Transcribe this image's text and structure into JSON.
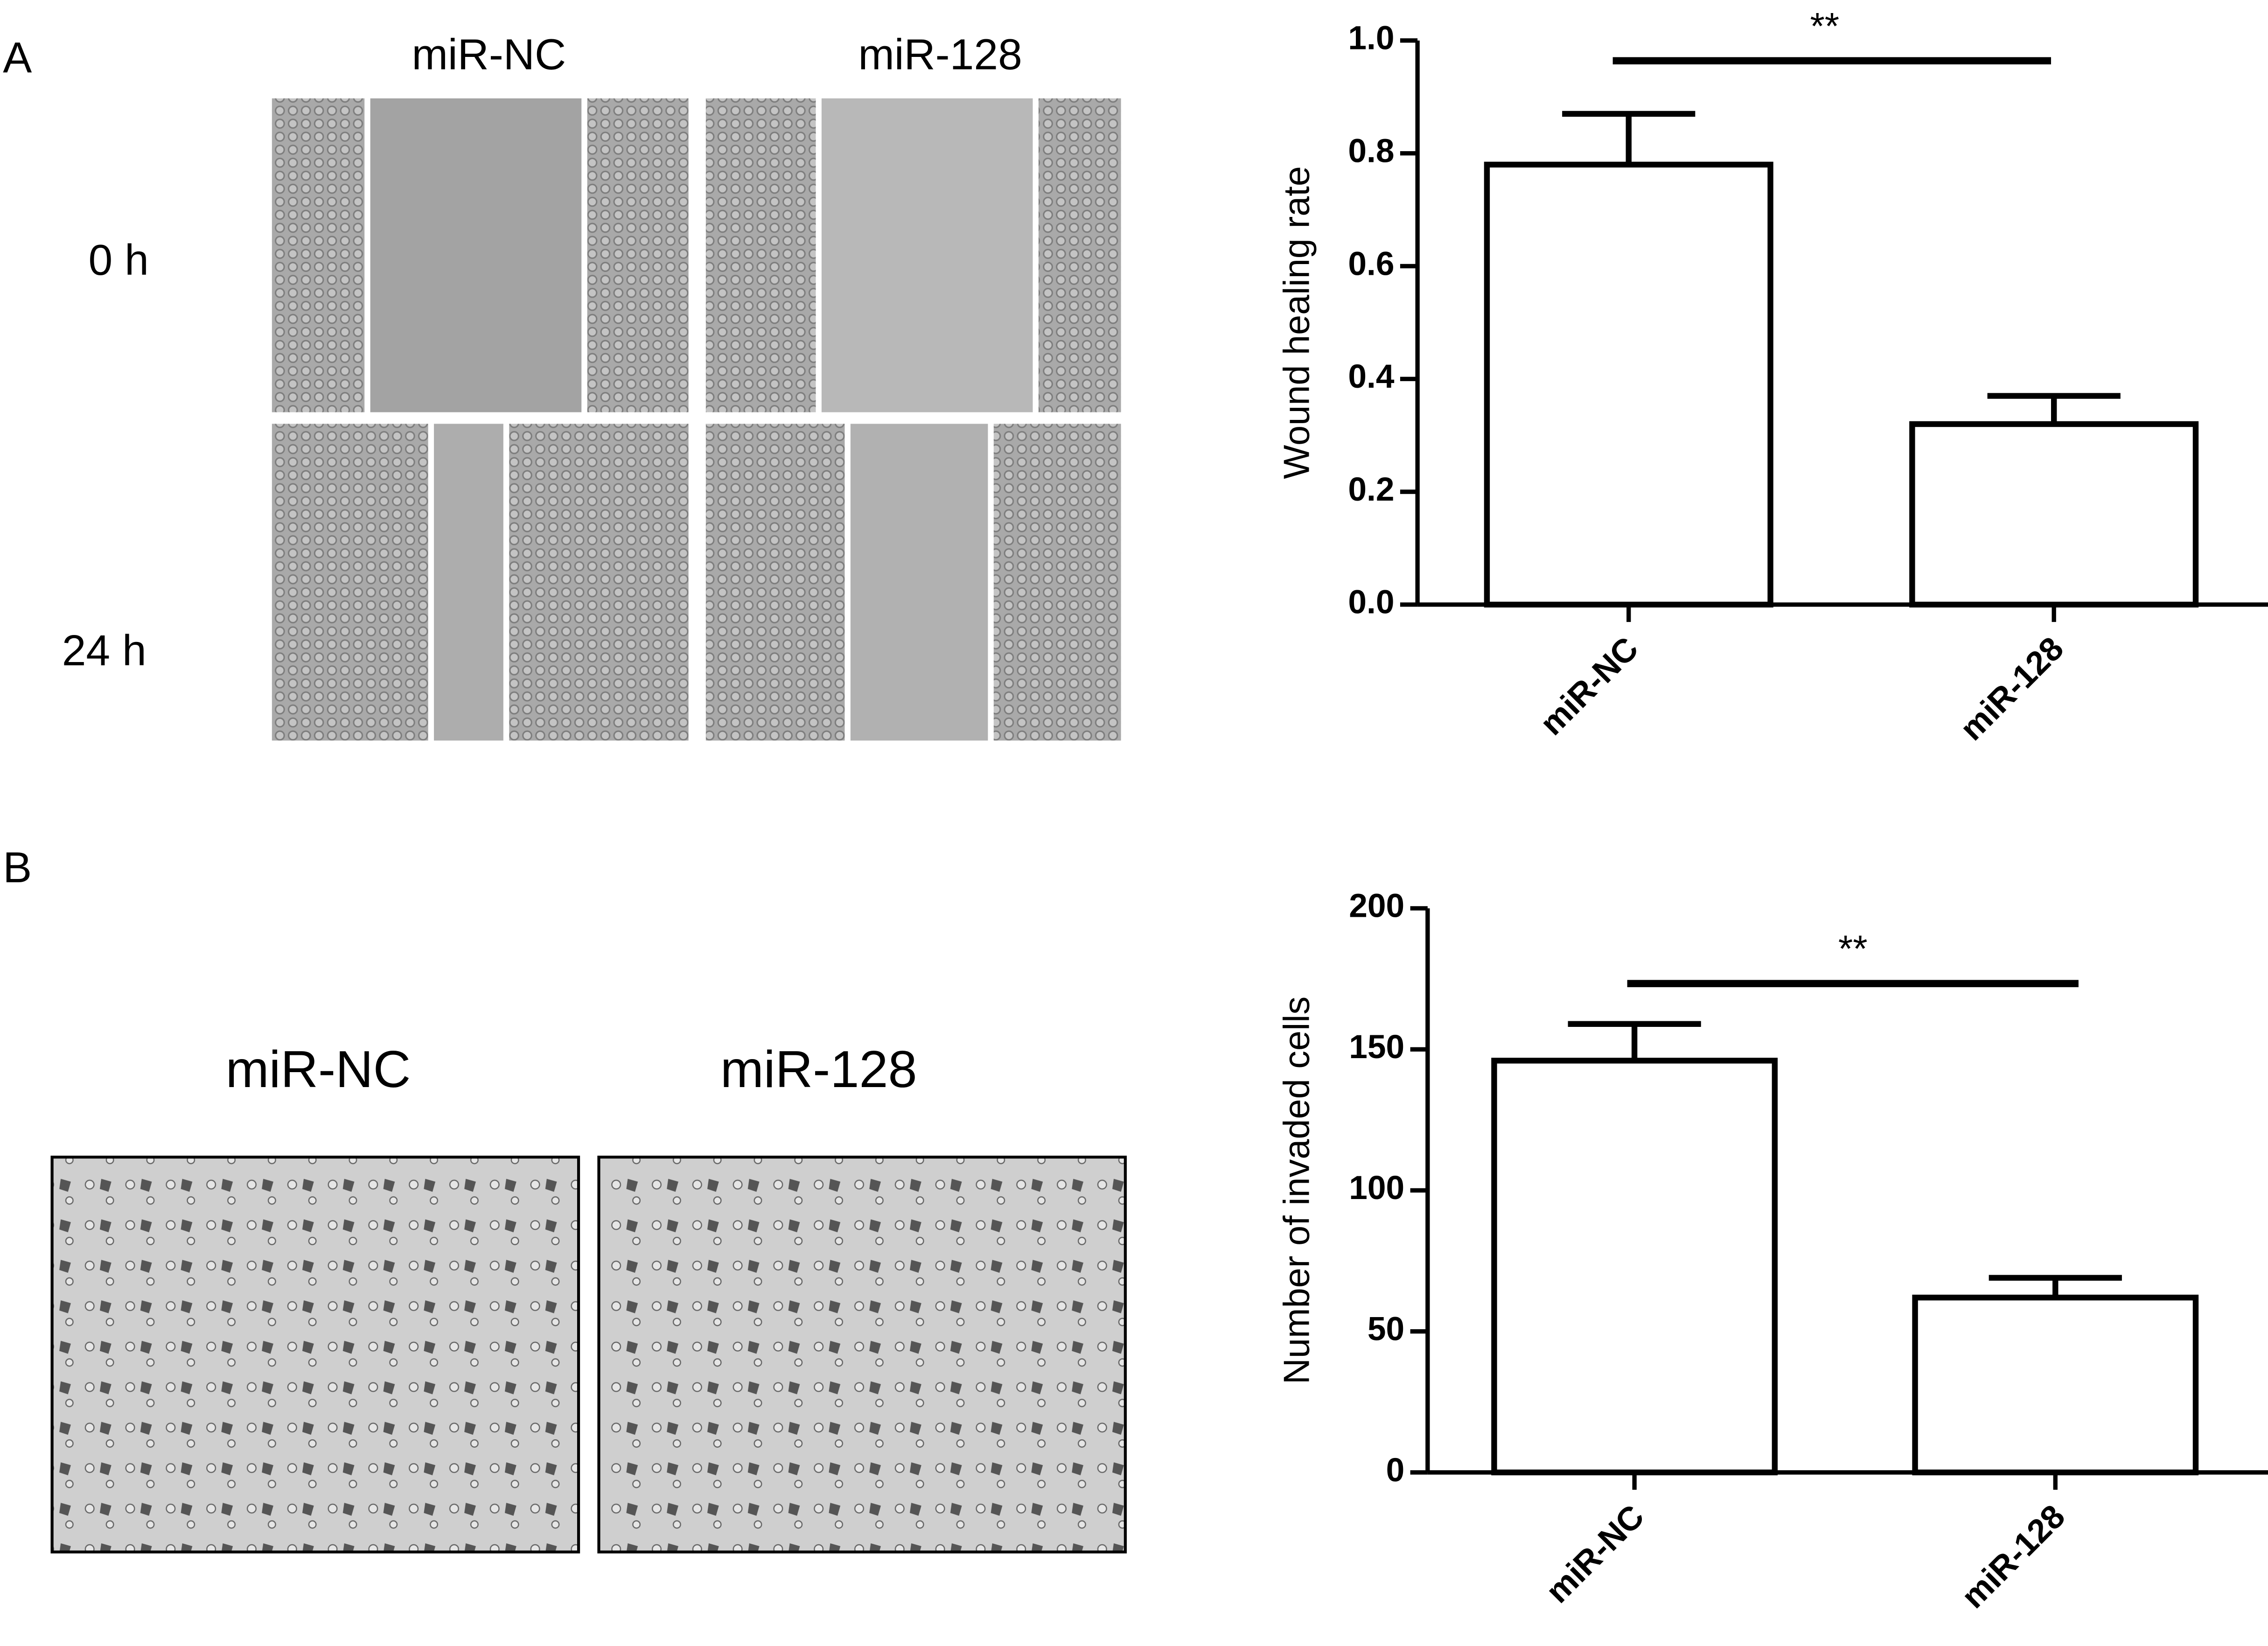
{
  "panels": [
    {
      "label": "A",
      "columns": [
        "miR-NC",
        "miR-128"
      ],
      "rows": [
        "0 h",
        "24 h"
      ]
    },
    {
      "label": "B",
      "columns": [
        "miR-NC",
        "miR-128"
      ]
    }
  ],
  "chart_data": [
    {
      "type": "bar",
      "ylabel": "Wound healing rate",
      "categories": [
        "miR-NC",
        "miR-128"
      ],
      "values": [
        0.78,
        0.32
      ],
      "errors": [
        0.09,
        0.05
      ],
      "color": "#ffffff",
      "ylim": [
        0,
        1
      ],
      "yticks": [
        {
          "value": 0,
          "label": "0.0"
        },
        0.2,
        0.4,
        0.6,
        0.8,
        {
          "value": 1,
          "label": "1.0"
        }
      ],
      "annotation": "**"
    },
    {
      "type": "bar",
      "ylabel": "Number of invaded cells",
      "categories": [
        "miR-NC",
        "miR-128"
      ],
      "values": [
        146,
        62
      ],
      "errors": [
        13,
        7
      ],
      "color": "#ffffff",
      "ylim": [
        0,
        200
      ],
      "yticks": [
        0,
        50,
        100,
        150,
        200
      ],
      "annotation": "**"
    }
  ]
}
